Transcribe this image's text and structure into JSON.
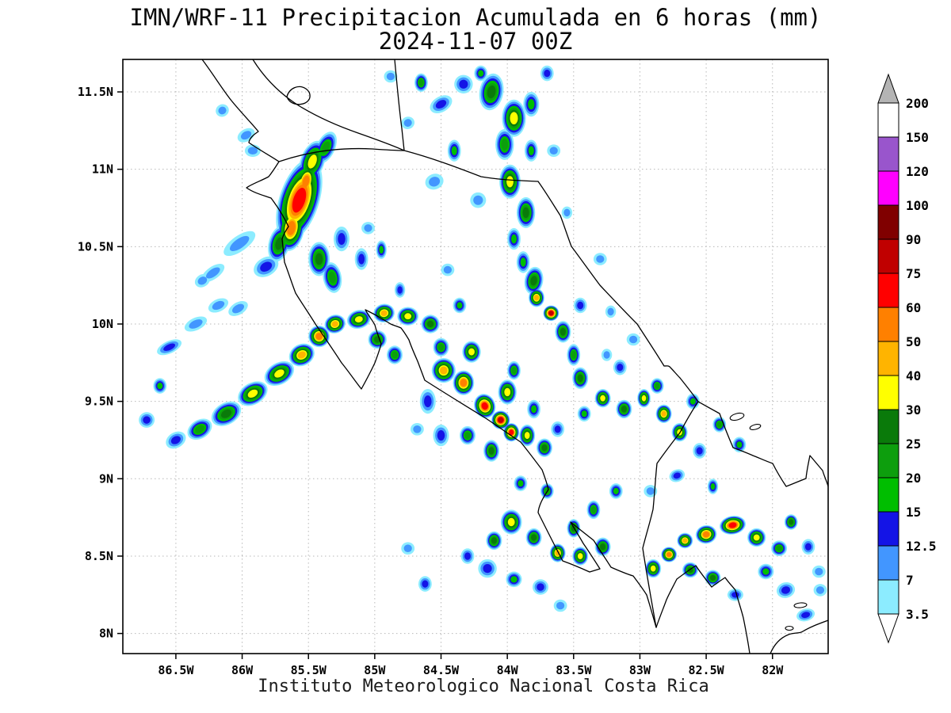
{
  "title": {
    "line1": "IMN/WRF-11 Precipitacion Acumulada en 6 horas (mm)",
    "line2": "2024-11-07 00Z"
  },
  "caption": "Instituto Meteorologico Nacional Costa Rica",
  "axes": {
    "lon_ticks": [
      {
        "label": "86.5W",
        "value": 86.5
      },
      {
        "label": "86W",
        "value": 86.0
      },
      {
        "label": "85.5W",
        "value": 85.5
      },
      {
        "label": "85W",
        "value": 85.0
      },
      {
        "label": "84.5W",
        "value": 84.5
      },
      {
        "label": "84W",
        "value": 84.0
      },
      {
        "label": "83.5W",
        "value": 83.5
      },
      {
        "label": "83W",
        "value": 83.0
      },
      {
        "label": "82.5W",
        "value": 82.5
      },
      {
        "label": "82W",
        "value": 82.0
      }
    ],
    "lat_ticks": [
      {
        "label": "11.5N",
        "value": 11.5
      },
      {
        "label": "11N",
        "value": 11.0
      },
      {
        "label": "10.5N",
        "value": 10.5
      },
      {
        "label": "10N",
        "value": 10.0
      },
      {
        "label": "9.5N",
        "value": 9.5
      },
      {
        "label": "9N",
        "value": 9.0
      },
      {
        "label": "8.5N",
        "value": 8.5
      },
      {
        "label": "8N",
        "value": 8.0
      }
    ]
  },
  "colorbar": {
    "labels_top_to_bottom": [
      "200",
      "150",
      "120",
      "100",
      "90",
      "75",
      "60",
      "50",
      "40",
      "30",
      "25",
      "20",
      "15",
      "12.5",
      "7",
      "3.5"
    ],
    "over_color": "#b4b4b4",
    "under_color": "#ffffff"
  },
  "chart_data": {
    "type": "heatmap",
    "model": "IMN/WRF-11",
    "variable": "Precipitacion Acumulada en 6 horas",
    "units": "mm",
    "valid_time": "2024-11-07 00Z",
    "lon_extent_west_deg": [
      86.9,
      81.58
    ],
    "lat_extent_north_deg": [
      7.87,
      11.71
    ],
    "levels_mm": [
      3.5,
      7,
      12.5,
      15,
      20,
      25,
      30,
      40,
      50,
      60,
      75,
      90,
      100,
      120,
      150,
      200
    ],
    "level_colors": [
      "#8cecff",
      "#4296ff",
      "#1414e6",
      "#00be00",
      "#0d9e0d",
      "#0a7a0a",
      "#ffff00",
      "#ffb400",
      "#ff8000",
      "#ff0000",
      "#c00000",
      "#800000",
      "#ff00ff",
      "#9955cc",
      "#ffffff"
    ],
    "cell_format": [
      "lon_w",
      "lat_n",
      "peak_mm",
      "rx_deg",
      "ry_deg",
      "rot_deg"
    ],
    "cells": [
      [
        85.57,
        10.8,
        60,
        0.15,
        0.28,
        18
      ],
      [
        85.52,
        10.92,
        50,
        0.08,
        0.13,
        15
      ],
      [
        85.63,
        10.62,
        50,
        0.1,
        0.15,
        10
      ],
      [
        85.47,
        11.05,
        30,
        0.09,
        0.14,
        20
      ],
      [
        85.37,
        11.14,
        20,
        0.07,
        0.11,
        25
      ],
      [
        85.72,
        10.52,
        25,
        0.08,
        0.12,
        15
      ],
      [
        85.42,
        10.42,
        25,
        0.08,
        0.11,
        0
      ],
      [
        85.32,
        10.3,
        20,
        0.07,
        0.1,
        -10
      ],
      [
        85.82,
        10.37,
        12.5,
        0.1,
        0.06,
        -30
      ],
      [
        86.02,
        10.52,
        7,
        0.14,
        0.05,
        -35
      ],
      [
        86.22,
        10.33,
        7,
        0.1,
        0.04,
        -35
      ],
      [
        85.92,
        11.12,
        7,
        0.06,
        0.04,
        0
      ],
      [
        85.25,
        10.55,
        12.5,
        0.06,
        0.08,
        0
      ],
      [
        85.1,
        10.42,
        12.5,
        0.05,
        0.07,
        0
      ],
      [
        84.95,
        10.48,
        15,
        0.04,
        0.06,
        0
      ],
      [
        85.97,
        11.22,
        7,
        0.07,
        0.04,
        -30
      ],
      [
        86.15,
        11.38,
        7,
        0.05,
        0.04,
        -30
      ],
      [
        86.03,
        10.1,
        7,
        0.08,
        0.04,
        -30
      ],
      [
        86.3,
        10.28,
        7,
        0.06,
        0.04,
        -30
      ],
      [
        84.12,
        11.5,
        25,
        0.09,
        0.12,
        10
      ],
      [
        83.95,
        11.33,
        30,
        0.09,
        0.12,
        0
      ],
      [
        84.02,
        11.16,
        20,
        0.07,
        0.1,
        0
      ],
      [
        83.82,
        11.42,
        15,
        0.06,
        0.08,
        0
      ],
      [
        84.33,
        11.55,
        12.5,
        0.07,
        0.06,
        -20
      ],
      [
        84.5,
        11.42,
        12.5,
        0.09,
        0.05,
        -30
      ],
      [
        84.65,
        11.56,
        20,
        0.05,
        0.06,
        0
      ],
      [
        84.4,
        11.12,
        15,
        0.05,
        0.07,
        0
      ],
      [
        84.55,
        10.92,
        7,
        0.07,
        0.05,
        -20
      ],
      [
        83.98,
        10.92,
        30,
        0.08,
        0.11,
        0
      ],
      [
        83.86,
        10.72,
        25,
        0.07,
        0.1,
        0
      ],
      [
        83.95,
        10.55,
        15,
        0.05,
        0.07,
        0
      ],
      [
        84.22,
        10.8,
        7,
        0.06,
        0.05,
        0
      ],
      [
        83.65,
        11.12,
        7,
        0.05,
        0.04,
        0
      ],
      [
        84.75,
        11.3,
        7,
        0.05,
        0.04,
        -20
      ],
      [
        83.82,
        11.12,
        15,
        0.05,
        0.07,
        0
      ],
      [
        83.7,
        11.62,
        12.5,
        0.05,
        0.05,
        0
      ],
      [
        84.2,
        11.62,
        15,
        0.05,
        0.05,
        0
      ],
      [
        84.88,
        11.6,
        7,
        0.05,
        0.04,
        0
      ],
      [
        86.32,
        9.32,
        20,
        0.1,
        0.06,
        -32
      ],
      [
        86.12,
        9.42,
        25,
        0.12,
        0.07,
        -30
      ],
      [
        85.92,
        9.55,
        30,
        0.12,
        0.07,
        -30
      ],
      [
        85.72,
        9.68,
        30,
        0.12,
        0.07,
        -30
      ],
      [
        85.55,
        9.8,
        40,
        0.1,
        0.07,
        -28
      ],
      [
        85.42,
        9.92,
        50,
        0.08,
        0.07,
        -25
      ],
      [
        85.3,
        10.0,
        40,
        0.08,
        0.06,
        -20
      ],
      [
        85.12,
        10.03,
        30,
        0.09,
        0.06,
        -15
      ],
      [
        84.93,
        10.07,
        40,
        0.08,
        0.06,
        -10
      ],
      [
        84.75,
        10.05,
        30,
        0.08,
        0.06,
        0
      ],
      [
        84.58,
        10.0,
        25,
        0.07,
        0.06,
        0
      ],
      [
        86.5,
        9.25,
        12.5,
        0.08,
        0.05,
        -30
      ],
      [
        86.62,
        9.6,
        15,
        0.05,
        0.05,
        0
      ],
      [
        86.55,
        9.85,
        12.5,
        0.1,
        0.04,
        -25
      ],
      [
        86.35,
        10.0,
        7,
        0.09,
        0.04,
        -25
      ],
      [
        86.18,
        10.12,
        7,
        0.08,
        0.04,
        -25
      ],
      [
        84.98,
        9.9,
        25,
        0.07,
        0.06,
        0
      ],
      [
        84.85,
        9.8,
        20,
        0.06,
        0.06,
        0
      ],
      [
        84.5,
        9.85,
        20,
        0.06,
        0.06,
        0
      ],
      [
        84.36,
        10.12,
        15,
        0.05,
        0.05,
        0
      ],
      [
        84.48,
        9.7,
        40,
        0.09,
        0.08,
        0
      ],
      [
        84.33,
        9.62,
        50,
        0.08,
        0.08,
        0
      ],
      [
        84.17,
        9.47,
        60,
        0.08,
        0.08,
        -20
      ],
      [
        84.05,
        9.38,
        75,
        0.07,
        0.06,
        -25
      ],
      [
        83.97,
        9.3,
        60,
        0.06,
        0.06,
        0
      ],
      [
        84.0,
        9.56,
        30,
        0.07,
        0.08,
        0
      ],
      [
        84.27,
        9.82,
        30,
        0.07,
        0.07,
        0
      ],
      [
        83.85,
        9.28,
        30,
        0.06,
        0.07,
        0
      ],
      [
        83.72,
        9.2,
        25,
        0.06,
        0.06,
        0
      ],
      [
        84.12,
        9.18,
        25,
        0.06,
        0.07,
        0
      ],
      [
        84.3,
        9.28,
        20,
        0.06,
        0.06,
        0
      ],
      [
        83.95,
        9.7,
        20,
        0.05,
        0.06,
        0
      ],
      [
        84.6,
        9.5,
        12.5,
        0.06,
        0.08,
        0
      ],
      [
        84.5,
        9.28,
        12.5,
        0.06,
        0.07,
        0
      ],
      [
        83.8,
        9.45,
        15,
        0.05,
        0.06,
        0
      ],
      [
        83.62,
        9.32,
        12.5,
        0.05,
        0.05,
        0
      ],
      [
        84.68,
        9.32,
        7,
        0.05,
        0.04,
        0
      ],
      [
        83.67,
        10.07,
        75,
        0.06,
        0.05,
        -10
      ],
      [
        83.78,
        10.17,
        40,
        0.06,
        0.06,
        0
      ],
      [
        83.8,
        10.28,
        25,
        0.07,
        0.09,
        10
      ],
      [
        83.88,
        10.4,
        15,
        0.05,
        0.07,
        0
      ],
      [
        83.58,
        9.95,
        25,
        0.06,
        0.07,
        0
      ],
      [
        83.5,
        9.8,
        20,
        0.05,
        0.07,
        0
      ],
      [
        83.45,
        9.65,
        25,
        0.06,
        0.07,
        0
      ],
      [
        83.28,
        9.52,
        30,
        0.06,
        0.06,
        0
      ],
      [
        83.12,
        9.45,
        25,
        0.06,
        0.06,
        0
      ],
      [
        82.97,
        9.52,
        30,
        0.05,
        0.06,
        0
      ],
      [
        82.82,
        9.42,
        40,
        0.06,
        0.06,
        0
      ],
      [
        82.7,
        9.3,
        30,
        0.06,
        0.06,
        0
      ],
      [
        82.87,
        9.6,
        20,
        0.05,
        0.05,
        0
      ],
      [
        83.15,
        9.72,
        12.5,
        0.05,
        0.05,
        0
      ],
      [
        82.6,
        9.5,
        15,
        0.05,
        0.05,
        0
      ],
      [
        82.55,
        9.18,
        12.5,
        0.05,
        0.05,
        0
      ],
      [
        83.42,
        9.42,
        15,
        0.05,
        0.05,
        0
      ],
      [
        82.4,
        9.35,
        20,
        0.05,
        0.05,
        0
      ],
      [
        82.25,
        9.22,
        15,
        0.05,
        0.05,
        0
      ],
      [
        83.25,
        9.8,
        7,
        0.04,
        0.04,
        0
      ],
      [
        83.97,
        8.72,
        30,
        0.08,
        0.08,
        0
      ],
      [
        84.1,
        8.6,
        25,
        0.06,
        0.06,
        0
      ],
      [
        83.8,
        8.62,
        25,
        0.06,
        0.06,
        0
      ],
      [
        83.62,
        8.52,
        40,
        0.06,
        0.06,
        0
      ],
      [
        83.45,
        8.5,
        30,
        0.06,
        0.06,
        0
      ],
      [
        83.28,
        8.56,
        25,
        0.06,
        0.06,
        0
      ],
      [
        83.5,
        8.68,
        25,
        0.05,
        0.06,
        0
      ],
      [
        83.35,
        8.8,
        20,
        0.05,
        0.06,
        0
      ],
      [
        83.18,
        8.92,
        15,
        0.05,
        0.05,
        0
      ],
      [
        84.15,
        8.42,
        12.5,
        0.07,
        0.06,
        0
      ],
      [
        84.3,
        8.5,
        12.5,
        0.05,
        0.05,
        0
      ],
      [
        83.95,
        8.35,
        15,
        0.06,
        0.05,
        0
      ],
      [
        83.75,
        8.3,
        12.5,
        0.06,
        0.05,
        0
      ],
      [
        83.7,
        8.92,
        20,
        0.05,
        0.05,
        0
      ],
      [
        83.9,
        8.97,
        15,
        0.05,
        0.05,
        0
      ],
      [
        83.6,
        8.18,
        7,
        0.05,
        0.04,
        0
      ],
      [
        82.3,
        8.7,
        60,
        0.1,
        0.06,
        -10
      ],
      [
        82.5,
        8.64,
        50,
        0.08,
        0.06,
        -10
      ],
      [
        82.66,
        8.6,
        40,
        0.06,
        0.05,
        0
      ],
      [
        82.78,
        8.51,
        50,
        0.06,
        0.05,
        0
      ],
      [
        82.9,
        8.42,
        30,
        0.06,
        0.06,
        0
      ],
      [
        82.62,
        8.41,
        25,
        0.06,
        0.05,
        0
      ],
      [
        82.45,
        8.36,
        25,
        0.06,
        0.05,
        0
      ],
      [
        82.12,
        8.62,
        30,
        0.07,
        0.06,
        0
      ],
      [
        81.95,
        8.55,
        20,
        0.06,
        0.05,
        0
      ],
      [
        81.86,
        8.72,
        25,
        0.05,
        0.05,
        0
      ],
      [
        81.73,
        8.56,
        12.5,
        0.05,
        0.05,
        0
      ],
      [
        82.05,
        8.4,
        15,
        0.06,
        0.05,
        0
      ],
      [
        81.9,
        8.28,
        12.5,
        0.07,
        0.05,
        -15
      ],
      [
        81.75,
        8.12,
        12.5,
        0.07,
        0.04,
        -15
      ],
      [
        82.28,
        8.25,
        12.5,
        0.06,
        0.04,
        0
      ],
      [
        81.65,
        8.4,
        7,
        0.05,
        0.04,
        0
      ],
      [
        81.64,
        8.28,
        7,
        0.05,
        0.04,
        0
      ],
      [
        82.72,
        9.02,
        12.5,
        0.06,
        0.04,
        -20
      ],
      [
        82.92,
        8.92,
        7,
        0.05,
        0.04,
        0
      ],
      [
        82.45,
        8.95,
        15,
        0.04,
        0.05,
        0
      ],
      [
        85.05,
        10.62,
        7,
        0.05,
        0.04,
        0
      ],
      [
        84.45,
        10.35,
        7,
        0.05,
        0.04,
        0
      ],
      [
        83.3,
        10.42,
        7,
        0.05,
        0.04,
        0
      ],
      [
        83.45,
        10.12,
        12.5,
        0.05,
        0.05,
        0
      ],
      [
        83.22,
        10.08,
        7,
        0.04,
        0.04,
        0
      ],
      [
        83.55,
        10.72,
        7,
        0.04,
        0.04,
        0
      ],
      [
        84.75,
        8.55,
        7,
        0.05,
        0.04,
        0
      ],
      [
        84.62,
        8.32,
        12.5,
        0.05,
        0.05,
        0
      ],
      [
        86.72,
        9.38,
        12.5,
        0.06,
        0.05,
        -20
      ],
      [
        84.81,
        10.22,
        12.5,
        0.04,
        0.05,
        0
      ],
      [
        83.05,
        9.9,
        7,
        0.05,
        0.04,
        0
      ]
    ]
  }
}
